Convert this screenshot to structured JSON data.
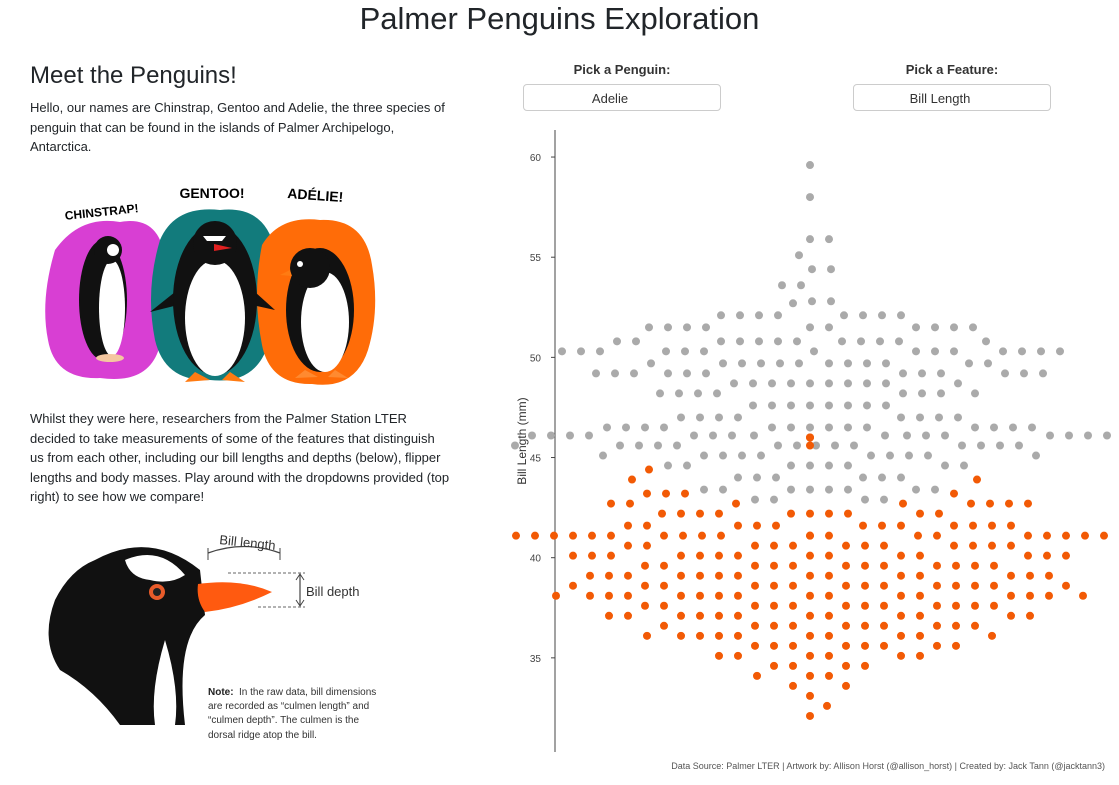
{
  "header": {
    "title": "Palmer Penguins Exploration"
  },
  "intro": {
    "heading": "Meet the Penguins!",
    "paragraph1": "Hello, our names are Chinstrap, Gentoo and Adelie, the three species of penguin that can be found in the islands of Palmer Archipelogo, Antarctica.",
    "paragraph2": "Whilst they were here, researchers from the Palmer Station LTER decided to take measurements of some of the features that distinguish us from each other, including our bill lengths and depths (below), flipper lengths and body masses. Play around with the dropdowns provided (top right) to see how we compare!"
  },
  "artwork": {
    "labels": [
      "CHINSTRAP!",
      "GENTOO!",
      "ADÉLIE!"
    ]
  },
  "bill_figure": {
    "bill_length": "Bill length",
    "bill_depth": "Bill depth",
    "note_label": "Note:",
    "note_lines": [
      "In the raw data, bill dimensions",
      "are recorded as “culmen length” and",
      "“culmen depth”. The culmen is the",
      "dorsal ridge atop the bill."
    ]
  },
  "controls": {
    "penguin": {
      "label": "Pick a Penguin:",
      "value": "Adelie"
    },
    "feature": {
      "label": "Pick a Feature:",
      "value": "Bill Length"
    }
  },
  "chart_data": {
    "type": "swarm",
    "y_label": "Bill Length (mm)",
    "ylim": [
      30.3,
      61.35
    ],
    "yticks": [
      35,
      40,
      45,
      50,
      55,
      60
    ],
    "series": [
      {
        "color": "#aaaaaa",
        "values": [
          59.6,
          58.0,
          55.9,
          55.9,
          55.1,
          54.4,
          54.4,
          53.6,
          53.6,
          52.8,
          52.8,
          52.7,
          52.1,
          52.1,
          52.1,
          52.1,
          52.1,
          52.1,
          52.1,
          52.1,
          51.5,
          51.5,
          51.5,
          51.5,
          51.5,
          51.5,
          51.5,
          51.5,
          51.5,
          51.5,
          50.8,
          50.8,
          50.8,
          50.8,
          50.8,
          50.8,
          50.8,
          50.8,
          50.8,
          50.8,
          50.8,
          50.8,
          50.3,
          50.3,
          50.3,
          50.3,
          50.3,
          50.3,
          50.3,
          50.3,
          50.3,
          50.3,
          50.3,
          50.3,
          50.3,
          50.3,
          49.7,
          49.7,
          49.7,
          49.7,
          49.7,
          49.7,
          49.7,
          49.7,
          49.7,
          49.7,
          49.7,
          49.7,
          49.2,
          49.2,
          49.2,
          49.2,
          49.2,
          49.2,
          49.2,
          49.2,
          49.2,
          49.2,
          49.2,
          49.2,
          48.7,
          48.7,
          48.7,
          48.7,
          48.7,
          48.7,
          48.7,
          48.7,
          48.7,
          48.7,
          48.2,
          48.2,
          48.2,
          48.2,
          48.2,
          48.2,
          48.2,
          48.2,
          47.6,
          47.6,
          47.6,
          47.6,
          47.6,
          47.6,
          47.6,
          47.6,
          47.0,
          47.0,
          47.0,
          47.0,
          47.0,
          47.0,
          47.0,
          47.0,
          46.5,
          46.5,
          46.5,
          46.5,
          46.5,
          46.5,
          46.5,
          46.5,
          46.5,
          46.5,
          46.5,
          46.5,
          46.5,
          46.5,
          46.1,
          46.1,
          46.1,
          46.1,
          46.1,
          46.1,
          46.1,
          46.1,
          46.1,
          46.1,
          46.1,
          46.1,
          46.1,
          46.1,
          46.1,
          46.1,
          45.6,
          45.6,
          45.6,
          45.6,
          45.6,
          45.6,
          45.6,
          45.6,
          45.6,
          45.6,
          45.6,
          45.6,
          45.6,
          45.6,
          45.1,
          45.1,
          45.1,
          45.1,
          45.1,
          45.1,
          45.1,
          45.1,
          45.1,
          45.1,
          44.6,
          44.6,
          44.6,
          44.6,
          44.6,
          44.6,
          44.6,
          44.6,
          44.0,
          44.0,
          44.0,
          44.0,
          44.0,
          44.0,
          43.4,
          43.4,
          43.4,
          43.4,
          43.4,
          43.4,
          43.4,
          43.4,
          42.9,
          42.9,
          42.9,
          42.9
        ]
      },
      {
        "color": "#f25a05",
        "values": [
          46.0,
          46.0,
          45.6,
          44.4,
          43.9,
          43.9,
          43.2,
          43.2,
          43.2,
          43.2,
          42.7,
          42.7,
          42.7,
          42.7,
          42.7,
          42.7,
          42.7,
          42.7,
          42.2,
          42.2,
          42.2,
          42.2,
          42.2,
          42.2,
          42.2,
          42.2,
          42.2,
          42.2,
          41.6,
          41.6,
          41.6,
          41.6,
          41.6,
          41.6,
          41.6,
          41.6,
          41.6,
          41.6,
          41.6,
          41.6,
          41.1,
          41.1,
          41.1,
          41.1,
          41.1,
          41.1,
          41.1,
          41.1,
          41.1,
          41.1,
          41.1,
          41.1,
          41.1,
          41.1,
          41.1,
          41.1,
          41.1,
          41.1,
          41.1,
          41.1,
          40.6,
          40.6,
          40.6,
          40.6,
          40.6,
          40.6,
          40.6,
          40.6,
          40.6,
          40.6,
          40.6,
          40.6,
          40.1,
          40.1,
          40.1,
          40.1,
          40.1,
          40.1,
          40.1,
          40.1,
          40.1,
          40.1,
          40.1,
          40.1,
          40.1,
          40.1,
          39.6,
          39.6,
          39.6,
          39.6,
          39.6,
          39.6,
          39.6,
          39.6,
          39.6,
          39.6,
          39.6,
          39.6,
          39.1,
          39.1,
          39.1,
          39.1,
          39.1,
          39.1,
          39.1,
          39.1,
          39.1,
          39.1,
          39.1,
          39.1,
          39.1,
          39.1,
          38.6,
          38.6,
          38.6,
          38.6,
          38.6,
          38.6,
          38.6,
          38.6,
          38.6,
          38.6,
          38.6,
          38.6,
          38.6,
          38.6,
          38.1,
          38.1,
          38.1,
          38.1,
          38.1,
          38.1,
          38.1,
          38.1,
          38.1,
          38.1,
          38.1,
          38.1,
          38.1,
          38.1,
          38.1,
          38.1,
          37.6,
          37.6,
          37.6,
          37.6,
          37.6,
          37.6,
          37.6,
          37.6,
          37.6,
          37.6,
          37.6,
          37.6,
          37.1,
          37.1,
          37.1,
          37.1,
          37.1,
          37.1,
          37.1,
          37.1,
          37.1,
          37.1,
          37.1,
          37.1,
          36.6,
          36.6,
          36.6,
          36.6,
          36.6,
          36.6,
          36.6,
          36.6,
          36.6,
          36.6,
          36.1,
          36.1,
          36.1,
          36.1,
          36.1,
          36.1,
          36.1,
          36.1,
          36.1,
          36.1,
          35.6,
          35.6,
          35.6,
          35.6,
          35.6,
          35.6,
          35.6,
          35.6,
          35.1,
          35.1,
          35.1,
          35.1,
          35.1,
          35.1,
          34.6,
          34.6,
          34.6,
          34.6,
          34.1,
          34.1,
          34.1,
          33.6,
          33.6,
          33.1,
          32.6,
          32.1
        ]
      }
    ]
  },
  "footer": "Data Source: Palmer LTER | Artwork by: Allison Horst (@allison_horst) | Created by: Jack Tann (@jacktann3)"
}
